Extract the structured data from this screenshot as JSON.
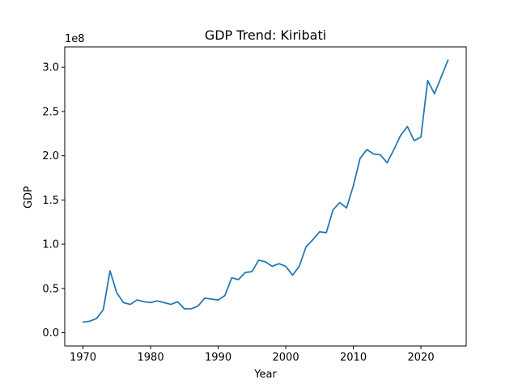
{
  "chart_data": {
    "type": "line",
    "title": "GDP Trend: Kiribati",
    "xlabel": "Year",
    "ylabel": "GDP",
    "y_offset_label": "1e8",
    "xlim": [
      1967.3,
      2026.7
    ],
    "ylim": [
      -0.15,
      3.23
    ],
    "y_scale_factor": 100000000,
    "x_ticks": [
      1970,
      1980,
      1990,
      2000,
      2010,
      2020
    ],
    "x_tick_labels": [
      "1970",
      "1980",
      "1990",
      "2000",
      "2010",
      "2020"
    ],
    "y_ticks": [
      0.0,
      0.5,
      1.0,
      1.5,
      2.0,
      2.5,
      3.0
    ],
    "y_tick_labels": [
      "0.0",
      "0.5",
      "1.0",
      "1.5",
      "2.0",
      "2.5",
      "3.0"
    ],
    "grid": false,
    "series": [
      {
        "color": "#1f77b4",
        "x": [
          1970,
          1971,
          1972,
          1973,
          1974,
          1975,
          1976,
          1977,
          1978,
          1979,
          1980,
          1981,
          1982,
          1983,
          1984,
          1985,
          1986,
          1987,
          1988,
          1989,
          1990,
          1991,
          1992,
          1993,
          1994,
          1995,
          1996,
          1997,
          1998,
          1999,
          2000,
          2001,
          2002,
          2003,
          2004,
          2005,
          2006,
          2007,
          2008,
          2009,
          2010,
          2011,
          2012,
          2013,
          2014,
          2015,
          2016,
          2017,
          2018,
          2019,
          2020,
          2021,
          2022,
          2023,
          2024
        ],
        "y": [
          0.12,
          0.13,
          0.16,
          0.26,
          0.7,
          0.45,
          0.34,
          0.32,
          0.37,
          0.35,
          0.34,
          0.36,
          0.34,
          0.32,
          0.35,
          0.27,
          0.27,
          0.3,
          0.39,
          0.38,
          0.37,
          0.42,
          0.62,
          0.6,
          0.68,
          0.69,
          0.82,
          0.8,
          0.75,
          0.78,
          0.75,
          0.65,
          0.75,
          0.97,
          1.05,
          1.14,
          1.13,
          1.39,
          1.47,
          1.41,
          1.66,
          1.97,
          2.07,
          2.02,
          2.01,
          1.92,
          2.07,
          2.23,
          2.33,
          2.17,
          2.21,
          2.85,
          2.7,
          2.89,
          3.08
        ]
      }
    ]
  }
}
